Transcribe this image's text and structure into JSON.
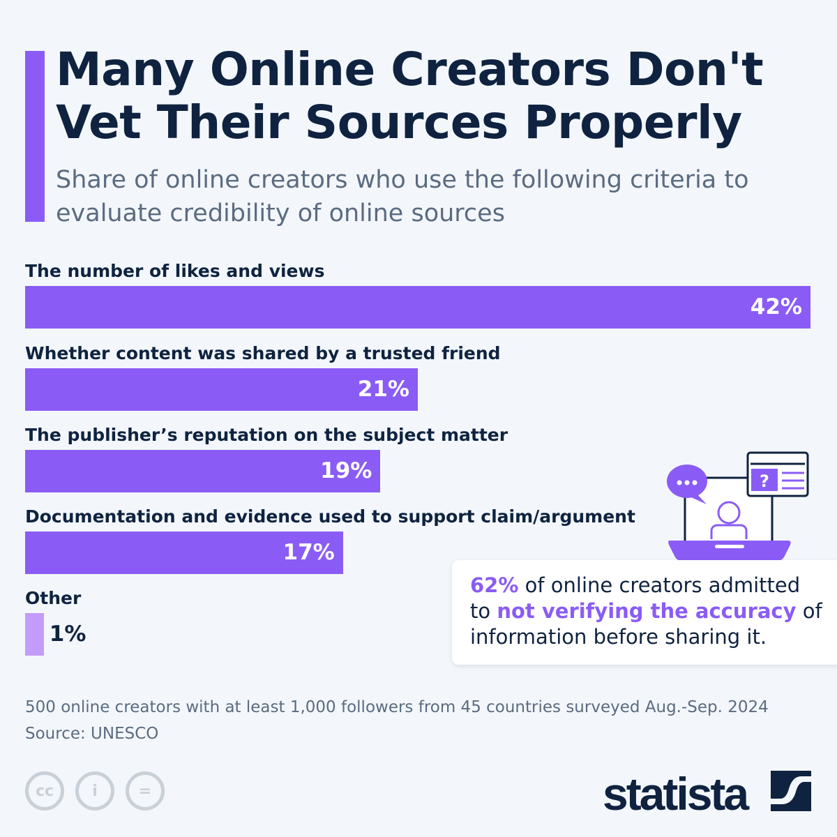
{
  "chart_data": {
    "type": "bar",
    "title": "Many Online Creators Don't Vet Their Sources Properly",
    "subtitle": "Share of online creators who use the following criteria to evaluate credibility of online sources",
    "categories": [
      "The number of likes and views",
      "Whether content was shared by a trusted friend",
      "The publisher’s reputation on the subject matter",
      "Documentation and evidence used to support claim/argument",
      "Other"
    ],
    "values": [
      42,
      21,
      19,
      17,
      1
    ],
    "value_labels": [
      "42%",
      "21%",
      "19%",
      "17%",
      "1%"
    ],
    "xlim": [
      0,
      42
    ],
    "colors": [
      "#8a5cf5",
      "#8a5cf5",
      "#8a5cf5",
      "#8a5cf5",
      "#c39cf9"
    ]
  },
  "callout": {
    "pct": "62%",
    "t1": " of online creators admitted to ",
    "hl": "not verifying the accuracy",
    "t2": " of information before sharing it."
  },
  "note": "500 online creators with at least 1,000 followers from 45 countries surveyed Aug.-Sep. 2024",
  "source": "Source: UNESCO",
  "logo": "statista",
  "license_icons": [
    "cc-icon",
    "attribution-icon",
    "no-derivatives-icon"
  ]
}
